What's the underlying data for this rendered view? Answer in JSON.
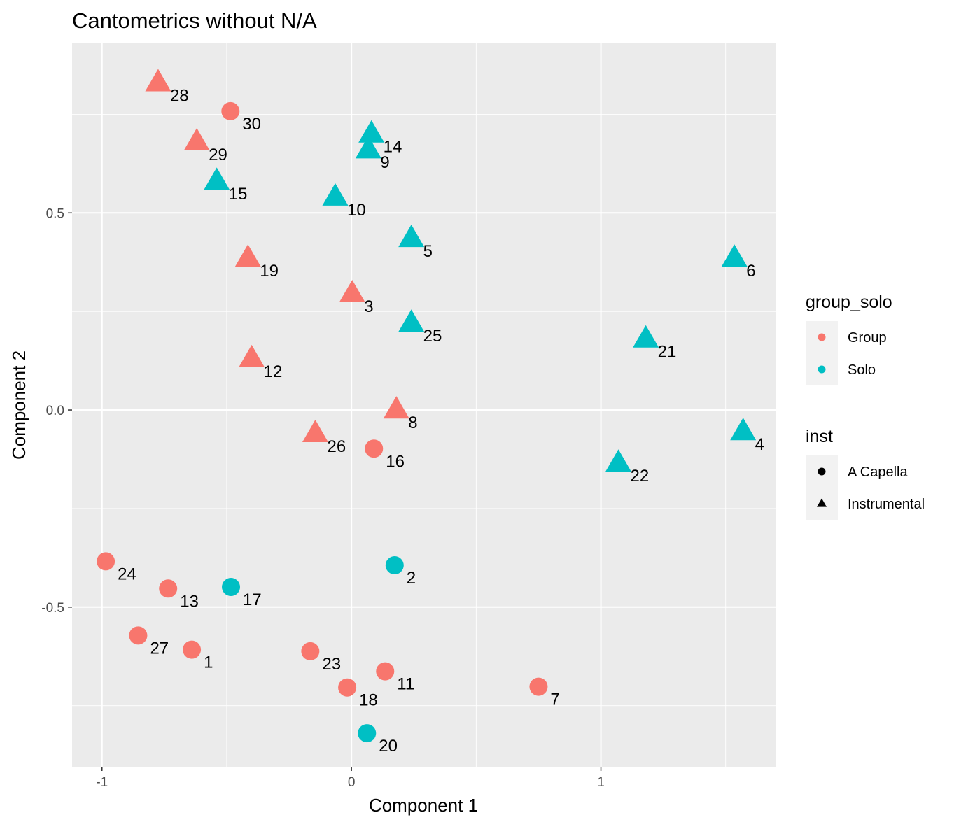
{
  "chart_data": {
    "type": "scatter",
    "title": "Cantometrics without N/A",
    "xlabel": "Component 1",
    "ylabel": "Component 2",
    "xlim": [
      -1.12,
      1.7
    ],
    "ylim": [
      -0.905,
      0.93
    ],
    "x_ticks": [
      -1,
      0,
      1
    ],
    "x_tick_labels": [
      "-1",
      "0",
      "1"
    ],
    "y_ticks": [
      -0.5,
      0,
      0.5
    ],
    "y_tick_labels": [
      "-0.5",
      "0.0",
      "0.5"
    ],
    "grid": true,
    "legend_position": "right",
    "legends": [
      {
        "title": "group_solo",
        "entries": [
          {
            "label": "Group",
            "color": "#F8766D",
            "shape": "circle"
          },
          {
            "label": "Solo",
            "color": "#00BFC4",
            "shape": "circle"
          }
        ]
      },
      {
        "title": "inst",
        "entries": [
          {
            "label": "A Capella",
            "color": "#000000",
            "shape": "circle"
          },
          {
            "label": "Instrumental",
            "color": "#000000",
            "shape": "triangle"
          }
        ]
      }
    ],
    "points": [
      {
        "label": "1",
        "x": -0.64,
        "y": -0.608,
        "group_solo": "Group",
        "inst": "A Capella"
      },
      {
        "label": "2",
        "x": 0.173,
        "y": -0.394,
        "group_solo": "Solo",
        "inst": "A Capella"
      },
      {
        "label": "3",
        "x": 0.003,
        "y": 0.295,
        "group_solo": "Group",
        "inst": "Instrumental"
      },
      {
        "label": "4",
        "x": 1.57,
        "y": -0.055,
        "group_solo": "Solo",
        "inst": "Instrumental"
      },
      {
        "label": "5",
        "x": 0.24,
        "y": 0.435,
        "group_solo": "Solo",
        "inst": "Instrumental"
      },
      {
        "label": "6",
        "x": 1.535,
        "y": 0.385,
        "group_solo": "Solo",
        "inst": "Instrumental"
      },
      {
        "label": "7",
        "x": 0.75,
        "y": -0.702,
        "group_solo": "Group",
        "inst": "A Capella"
      },
      {
        "label": "8",
        "x": 0.18,
        "y": 0.0,
        "group_solo": "Group",
        "inst": "Instrumental"
      },
      {
        "label": "9",
        "x": 0.068,
        "y": 0.66,
        "group_solo": "Solo",
        "inst": "Instrumental"
      },
      {
        "label": "10",
        "x": -0.065,
        "y": 0.54,
        "group_solo": "Solo",
        "inst": "Instrumental"
      },
      {
        "label": "11",
        "x": 0.135,
        "y": -0.663,
        "group_solo": "Group",
        "inst": "A Capella"
      },
      {
        "label": "12",
        "x": -0.4,
        "y": 0.13,
        "group_solo": "Group",
        "inst": "Instrumental"
      },
      {
        "label": "13",
        "x": -0.735,
        "y": -0.453,
        "group_solo": "Group",
        "inst": "A Capella"
      },
      {
        "label": "14",
        "x": 0.08,
        "y": 0.7,
        "group_solo": "Solo",
        "inst": "Instrumental"
      },
      {
        "label": "15",
        "x": -0.54,
        "y": 0.58,
        "group_solo": "Solo",
        "inst": "Instrumental"
      },
      {
        "label": "16",
        "x": 0.09,
        "y": -0.098,
        "group_solo": "Group",
        "inst": "A Capella"
      },
      {
        "label": "17",
        "x": -0.483,
        "y": -0.449,
        "group_solo": "Solo",
        "inst": "A Capella"
      },
      {
        "label": "18",
        "x": -0.017,
        "y": -0.704,
        "group_solo": "Group",
        "inst": "A Capella"
      },
      {
        "label": "19",
        "x": -0.415,
        "y": 0.385,
        "group_solo": "Group",
        "inst": "Instrumental"
      },
      {
        "label": "20",
        "x": 0.062,
        "y": -0.82,
        "group_solo": "Solo",
        "inst": "A Capella"
      },
      {
        "label": "21",
        "x": 1.18,
        "y": 0.18,
        "group_solo": "Solo",
        "inst": "Instrumental"
      },
      {
        "label": "22",
        "x": 1.07,
        "y": -0.135,
        "group_solo": "Solo",
        "inst": "Instrumental"
      },
      {
        "label": "23",
        "x": -0.165,
        "y": -0.612,
        "group_solo": "Group",
        "inst": "A Capella"
      },
      {
        "label": "24",
        "x": -0.985,
        "y": -0.384,
        "group_solo": "Group",
        "inst": "A Capella"
      },
      {
        "label": "25",
        "x": 0.24,
        "y": 0.22,
        "group_solo": "Solo",
        "inst": "Instrumental"
      },
      {
        "label": "26",
        "x": -0.145,
        "y": -0.06,
        "group_solo": "Group",
        "inst": "Instrumental"
      },
      {
        "label": "27",
        "x": -0.855,
        "y": -0.572,
        "group_solo": "Group",
        "inst": "A Capella"
      },
      {
        "label": "28",
        "x": -0.775,
        "y": 0.83,
        "group_solo": "Group",
        "inst": "Instrumental"
      },
      {
        "label": "29",
        "x": -0.62,
        "y": 0.68,
        "group_solo": "Group",
        "inst": "Instrumental"
      },
      {
        "label": "30",
        "x": -0.485,
        "y": 0.758,
        "group_solo": "Group",
        "inst": "A Capella"
      }
    ]
  }
}
